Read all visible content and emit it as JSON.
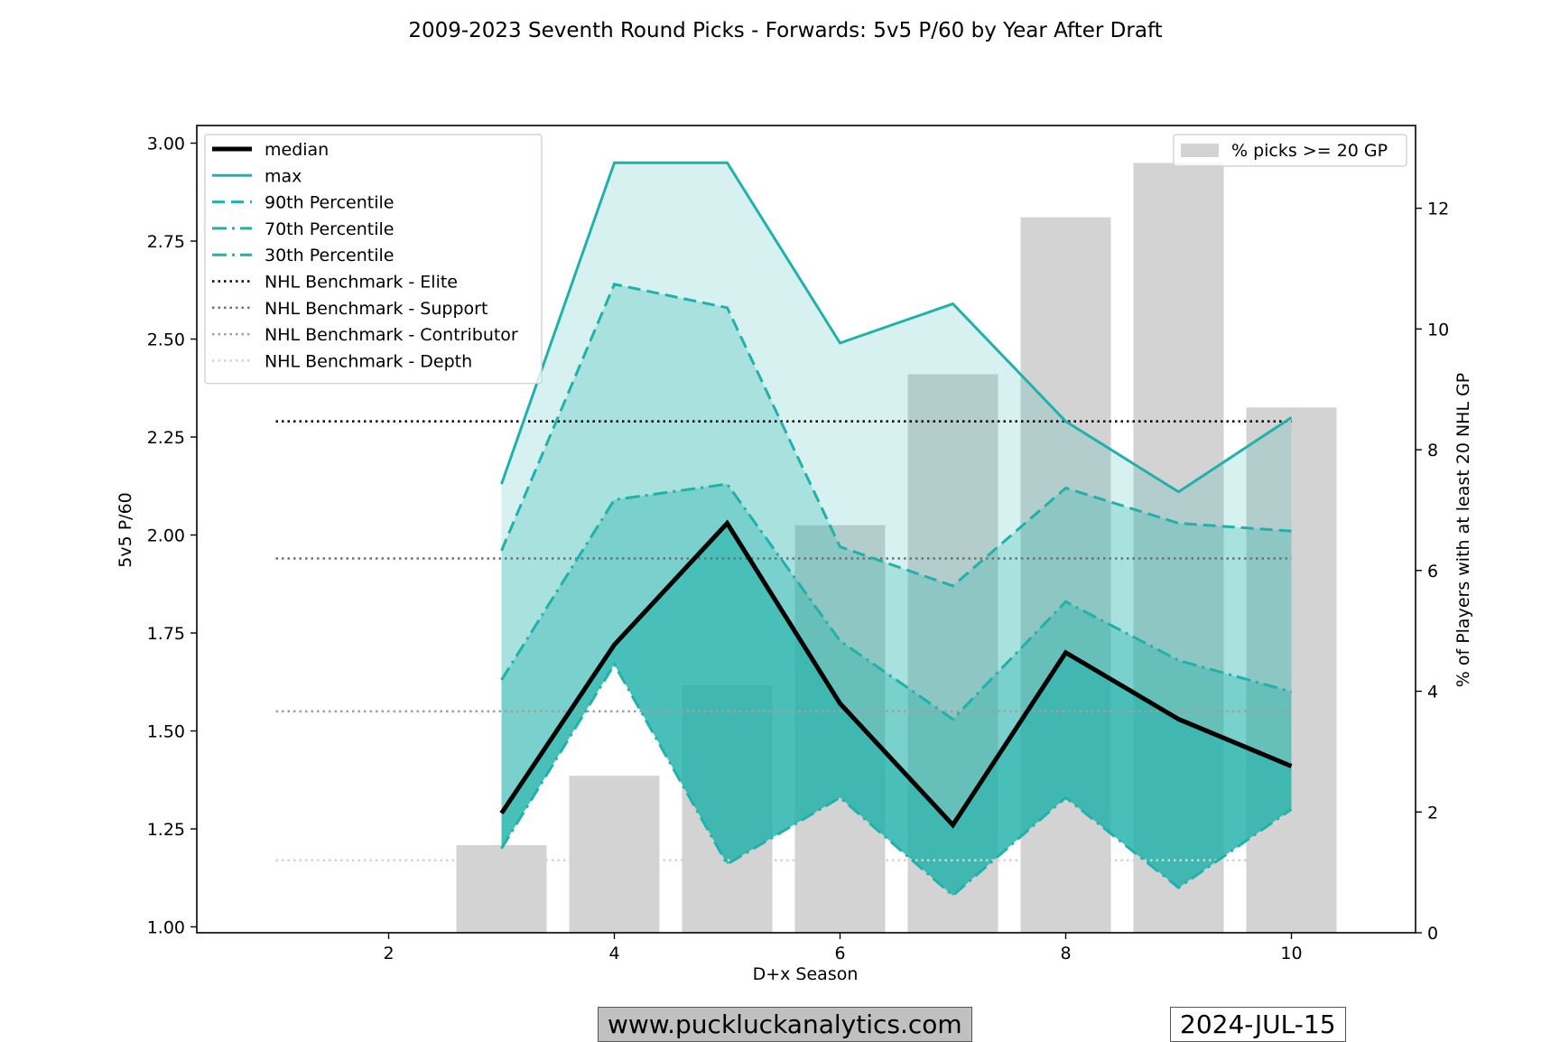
{
  "chart_data": {
    "type": "line",
    "title": "2009-2023 Seventh Round Picks - Forwards: 5v5 P/60 by Year After Draft",
    "xlabel": "D+x Season",
    "ylabel": "5v5 P/60",
    "y2label": "% of Players with at least 20 NHL GP",
    "xlim": [
      0.3,
      11.1
    ],
    "ylim": [
      0.985,
      3.045
    ],
    "y2lim": [
      0,
      13.37
    ],
    "x_ticks": [
      2,
      4,
      6,
      8,
      10
    ],
    "y_ticks": [
      "1.00",
      "1.25",
      "1.50",
      "1.75",
      "2.00",
      "2.25",
      "2.50",
      "2.75",
      "3.00"
    ],
    "y2_ticks": [
      0,
      2,
      4,
      6,
      8,
      10,
      12
    ],
    "x": [
      3,
      4,
      5,
      6,
      7,
      8,
      9,
      10
    ],
    "series": [
      {
        "name": "median",
        "values": [
          1.29,
          1.72,
          2.03,
          1.57,
          1.26,
          1.7,
          1.53,
          1.41
        ],
        "color": "#000000",
        "style": "solid",
        "width": 5
      },
      {
        "name": "max",
        "values": [
          2.13,
          2.95,
          2.95,
          2.49,
          2.59,
          2.29,
          2.11,
          2.3
        ],
        "color": "#20b2aa",
        "style": "solid",
        "width": 3
      },
      {
        "name": "90th Percentile",
        "values": [
          1.96,
          2.64,
          2.58,
          1.97,
          1.87,
          2.12,
          2.03,
          2.01
        ],
        "color": "#20b2aa",
        "style": "dashed",
        "width": 3
      },
      {
        "name": "70th Percentile",
        "values": [
          1.63,
          2.09,
          2.13,
          1.73,
          1.53,
          1.83,
          1.68,
          1.6
        ],
        "color": "#20b2aa",
        "style": "dashdot",
        "width": 3
      },
      {
        "name": "30th Percentile",
        "values": [
          1.2,
          1.67,
          1.16,
          1.33,
          1.08,
          1.33,
          1.1,
          1.3
        ],
        "color": "#20b2aa",
        "style": "dashdot",
        "width": 3
      }
    ],
    "benchmarks": [
      {
        "name": "NHL Benchmark - Elite",
        "value": 2.29,
        "color": "#000000"
      },
      {
        "name": "NHL Benchmark - Support",
        "value": 1.94,
        "color": "#707070"
      },
      {
        "name": "NHL Benchmark - Contributor",
        "value": 1.55,
        "color": "#a0a0a0"
      },
      {
        "name": "NHL Benchmark - Depth",
        "value": 1.17,
        "color": "#d3d3d3"
      }
    ],
    "benchmark_x_range": [
      1,
      10
    ],
    "bars": {
      "name": "% picks >= 20 GP",
      "x": [
        3,
        4,
        5,
        6,
        7,
        8,
        9,
        10
      ],
      "values": [
        1.45,
        2.6,
        4.1,
        6.75,
        9.25,
        11.85,
        12.75,
        8.7
      ],
      "color": "#d3d3d3"
    },
    "bands": [
      {
        "from": "30th Percentile",
        "to": "max",
        "color": "#20b2aa",
        "opacity": 0.18
      },
      {
        "from": "30th Percentile",
        "to": "90th Percentile",
        "color": "#20b2aa",
        "opacity": 0.25
      },
      {
        "from": "30th Percentile",
        "to": "70th Percentile",
        "color": "#20b2aa",
        "opacity": 0.35
      },
      {
        "from": "30th Percentile",
        "to": "median",
        "color": "#20b2aa",
        "opacity": 0.55
      }
    ],
    "legend_left_placement": "upper-left",
    "legend_right_placement": "upper-right",
    "grid": false
  },
  "footer": {
    "website": "www.puckluckanalytics.com",
    "date": "2024-JUL-15"
  }
}
